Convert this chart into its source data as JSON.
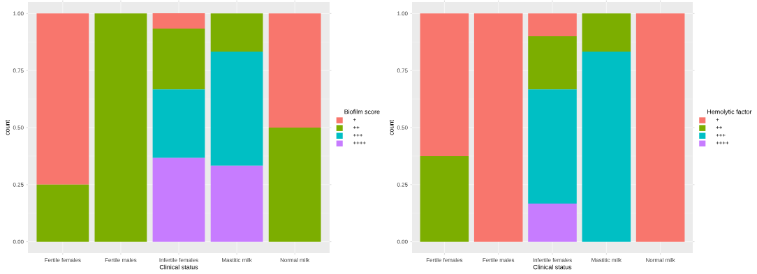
{
  "chart_data": [
    {
      "type": "bar",
      "stacked": true,
      "xlabel": "Clinical status",
      "ylabel": "count",
      "legend_title": "Biofilm score",
      "legend": "right",
      "grid": true,
      "categories": [
        "Fertile females",
        "Fertile males",
        "Infertile females",
        "Mastitic milk",
        "Normal milk"
      ],
      "ylim": [
        -0.05,
        1.05
      ],
      "yticks": [
        {
          "value": 0,
          "label": "0.00"
        },
        {
          "value": 0.25,
          "label": "0.25"
        },
        {
          "value": 0.5,
          "label": "0.50"
        },
        {
          "value": 0.75,
          "label": "0.75"
        },
        {
          "value": 1,
          "label": "1.00"
        }
      ],
      "series": [
        {
          "name": "++++",
          "color": "#C77CFF",
          "values": [
            0,
            0,
            0.367,
            0.333,
            0
          ]
        },
        {
          "name": "+++",
          "color": "#00BFC4",
          "values": [
            0,
            0,
            0.3,
            0.5,
            0
          ]
        },
        {
          "name": "++",
          "color": "#7CAE00",
          "values": [
            0.25,
            1,
            0.267,
            0.167,
            0.5
          ]
        },
        {
          "name": "+",
          "color": "#F8766D",
          "values": [
            0.75,
            0,
            0.067,
            0,
            0.5
          ]
        }
      ]
    },
    {
      "type": "bar",
      "stacked": true,
      "xlabel": "Clinical status",
      "ylabel": "count",
      "legend_title": "Hemolytic factor",
      "legend": "right",
      "grid": true,
      "categories": [
        "Fertile females",
        "Fertile males",
        "Infertile females",
        "Mastitic milk",
        "Normal milk"
      ],
      "ylim": [
        -0.05,
        1.05
      ],
      "yticks": [
        {
          "value": 0,
          "label": "0.00"
        },
        {
          "value": 0.25,
          "label": "0.25"
        },
        {
          "value": 0.5,
          "label": "0.50"
        },
        {
          "value": 0.75,
          "label": "0.75"
        },
        {
          "value": 1,
          "label": "1.00"
        }
      ],
      "series": [
        {
          "name": "++++",
          "color": "#C77CFF",
          "values": [
            0,
            0,
            0.167,
            0,
            0
          ]
        },
        {
          "name": "+++",
          "color": "#00BFC4",
          "values": [
            0,
            0,
            0.5,
            0.833,
            0
          ]
        },
        {
          "name": "++",
          "color": "#7CAE00",
          "values": [
            0.375,
            0,
            0.233,
            0.167,
            0
          ]
        },
        {
          "name": "+",
          "color": "#F8766D",
          "values": [
            0.625,
            1,
            0.1,
            0,
            1
          ]
        }
      ]
    }
  ]
}
